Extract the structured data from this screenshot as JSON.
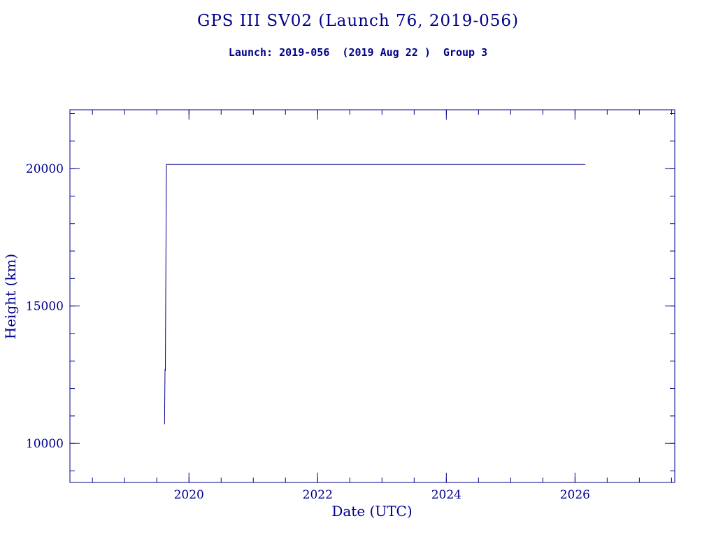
{
  "title": "GPS III SV02 (Launch 76, 2019-056)",
  "subtitle": "Launch: 2019-056  (2019 Aug 22 )  Group 3",
  "colors": {
    "ink": "#00008B",
    "background": "#FFFFFF"
  },
  "chart_data": {
    "type": "line",
    "title": "GPS III SV02 (Launch 76, 2019-056)",
    "subtitle": "Launch: 2019-056  (2019 Aug 22 )  Group 3",
    "xlabel": "Date (UTC)",
    "ylabel": "Height (km)",
    "xlim": [
      2018.15,
      2027.55
    ],
    "ylim": [
      8580,
      22140
    ],
    "xticks": [
      2020,
      2022,
      2024,
      2026
    ],
    "x_minor_step": 0.5,
    "yticks": [
      10000,
      15000,
      20000
    ],
    "y_minor_step": 1000,
    "grid": false,
    "legend": "none",
    "line_color": "#00008B",
    "series": [
      {
        "name": "orbit-height-km",
        "points": [
          [
            2019.62,
            10700
          ],
          [
            2019.628,
            12700
          ],
          [
            2019.633,
            12640
          ],
          [
            2019.65,
            20150
          ],
          [
            2026.16,
            20150
          ]
        ]
      }
    ]
  }
}
